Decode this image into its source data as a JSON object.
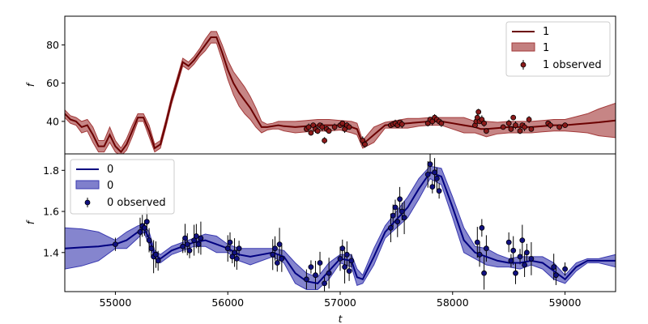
{
  "chart_data": [
    {
      "type": "line",
      "panel": "top",
      "xlabel": "",
      "ylabel": "f",
      "xlim": [
        54550,
        59450
      ],
      "ylim": [
        23,
        95
      ],
      "yticks": [
        40,
        60,
        80
      ],
      "grid": false,
      "legend_position": "top-right",
      "legend": [
        "1",
        "1",
        "1 observed"
      ],
      "colors": {
        "line": "#6b0000",
        "band": "#a33a3a",
        "marker": "#8b1a1a"
      },
      "series": [
        {
          "name": "1",
          "x": [
            54550,
            54600,
            54650,
            54700,
            54750,
            54800,
            54850,
            54900,
            54950,
            55000,
            55050,
            55100,
            55150,
            55200,
            55250,
            55300,
            55350,
            55400,
            55450,
            55500,
            55550,
            55600,
            55650,
            55700,
            55750,
            55800,
            55850,
            55900,
            55950,
            56000,
            56050,
            56100,
            56150,
            56200,
            56250,
            56300,
            56350,
            56400,
            56450,
            56500,
            56600,
            56700,
            56800,
            56900,
            57000,
            57100,
            57150,
            57200,
            57300,
            57400,
            57500,
            57600,
            57700,
            57800,
            57900,
            58000,
            58100,
            58200,
            58250,
            58300,
            58400,
            58500,
            58600,
            58700,
            58800,
            58900,
            59000,
            59100,
            59200,
            59300,
            59450
          ],
          "y": [
            44,
            41,
            40,
            37,
            38,
            33,
            27,
            27,
            33,
            27,
            24,
            28,
            35,
            42,
            42,
            35,
            26,
            28,
            39,
            51,
            61,
            71,
            69,
            72,
            76,
            80,
            84,
            84,
            76,
            67,
            60,
            55,
            51,
            47,
            42,
            37,
            37,
            37.5,
            38,
            37.5,
            37,
            37.5,
            38,
            38,
            38,
            37,
            36,
            28,
            33,
            38,
            38.5,
            39,
            39.5,
            40,
            40,
            39,
            38,
            37,
            36,
            36,
            36.5,
            37,
            37,
            37,
            37.5,
            38,
            38,
            38.5,
            39,
            39.5,
            40.5
          ],
          "band_width": [
            2,
            2,
            2,
            3,
            3,
            4,
            3,
            3,
            4,
            3,
            2,
            3,
            3,
            2,
            2,
            3,
            2,
            2,
            2,
            2,
            2,
            2,
            2,
            2,
            2,
            3,
            3,
            3,
            4,
            5,
            6,
            7,
            7,
            6,
            5,
            3,
            1.5,
            1.5,
            2,
            2.5,
            3,
            3,
            3,
            3,
            2.5,
            3,
            3,
            2,
            4,
            1.5,
            2,
            2.5,
            2,
            2,
            2,
            3,
            4,
            3,
            3,
            4,
            3,
            3,
            3,
            3,
            3,
            3,
            3,
            4,
            5,
            7,
            9
          ]
        },
        {
          "name": "1 observed",
          "x": [
            56700,
            56720,
            56740,
            56760,
            56780,
            56800,
            56820,
            56840,
            56860,
            56880,
            56900,
            56950,
            57000,
            57020,
            57040,
            57060,
            57080,
            57200,
            57220,
            57450,
            57470,
            57490,
            57510,
            57530,
            57550,
            57780,
            57800,
            57820,
            57840,
            57860,
            57880,
            57900,
            58200,
            58210,
            58220,
            58230,
            58240,
            58260,
            58280,
            58300,
            58450,
            58500,
            58520,
            58540,
            58560,
            58600,
            58620,
            58640,
            58680,
            58700,
            58850,
            58870,
            58950,
            59000
          ],
          "y": [
            36,
            37,
            34,
            38,
            36,
            35,
            38,
            37,
            30,
            36,
            35,
            37,
            38,
            39,
            36,
            38,
            37,
            30,
            28,
            38,
            38.5,
            39,
            38,
            39.5,
            38.5,
            39,
            41,
            40,
            42,
            41,
            40,
            39,
            38,
            40,
            42,
            45,
            40,
            41,
            39,
            35,
            37,
            39,
            36,
            42,
            38,
            35,
            38,
            37,
            41,
            36,
            39,
            38,
            37,
            38
          ]
        }
      ]
    },
    {
      "type": "line",
      "panel": "bottom",
      "xlabel": "t",
      "ylabel": "f",
      "xlim": [
        54550,
        59450
      ],
      "ylim": [
        1.21,
        1.88
      ],
      "yticks": [
        1.4,
        1.6,
        1.8
      ],
      "xticks": [
        55000,
        56000,
        57000,
        58000,
        59000
      ],
      "grid": false,
      "legend_position": "top-left",
      "legend": [
        "0",
        "0",
        "0 observed"
      ],
      "colors": {
        "line": "#000080",
        "band": "#3a3ab0",
        "marker": "#101080"
      },
      "series": [
        {
          "name": "0",
          "x": [
            54550,
            54700,
            54850,
            55000,
            55100,
            55200,
            55250,
            55300,
            55350,
            55400,
            55500,
            55600,
            55700,
            55800,
            55900,
            56000,
            56100,
            56200,
            56300,
            56400,
            56500,
            56600,
            56700,
            56800,
            56900,
            57000,
            57100,
            57150,
            57200,
            57300,
            57400,
            57500,
            57600,
            57700,
            57800,
            57900,
            58000,
            58100,
            58200,
            58300,
            58400,
            58500,
            58600,
            58700,
            58800,
            58900,
            59000,
            59100,
            59200,
            59300,
            59450
          ],
          "y": [
            1.42,
            1.425,
            1.43,
            1.44,
            1.46,
            1.5,
            1.52,
            1.47,
            1.39,
            1.37,
            1.41,
            1.43,
            1.45,
            1.46,
            1.44,
            1.42,
            1.39,
            1.38,
            1.39,
            1.4,
            1.38,
            1.3,
            1.26,
            1.25,
            1.31,
            1.37,
            1.36,
            1.28,
            1.27,
            1.38,
            1.5,
            1.56,
            1.62,
            1.71,
            1.79,
            1.77,
            1.62,
            1.46,
            1.4,
            1.38,
            1.36,
            1.35,
            1.35,
            1.36,
            1.35,
            1.31,
            1.27,
            1.33,
            1.36,
            1.36,
            1.36
          ],
          "band_width": [
            0.1,
            0.09,
            0.07,
            0.02,
            0.04,
            0.03,
            0.02,
            0.03,
            0.02,
            0.02,
            0.02,
            0.02,
            0.02,
            0.03,
            0.04,
            0.02,
            0.03,
            0.04,
            0.03,
            0.02,
            0.03,
            0.05,
            0.04,
            0.03,
            0.04,
            0.02,
            0.03,
            0.04,
            0.02,
            0.04,
            0.03,
            0.04,
            0.05,
            0.05,
            0.03,
            0.04,
            0.05,
            0.06,
            0.03,
            0.04,
            0.03,
            0.02,
            0.03,
            0.02,
            0.03,
            0.04,
            0.02,
            0.02,
            0.01,
            0.01,
            0.03
          ]
        },
        {
          "name": "0 observed",
          "x": [
            55000,
            55220,
            55240,
            55260,
            55280,
            55300,
            55320,
            55340,
            55360,
            55380,
            55600,
            55620,
            55640,
            55660,
            55700,
            55720,
            55740,
            55760,
            56000,
            56020,
            56040,
            56060,
            56080,
            56100,
            56400,
            56420,
            56440,
            56460,
            56480,
            56700,
            56740,
            56780,
            56820,
            56860,
            56900,
            57000,
            57020,
            57040,
            57060,
            57080,
            57100,
            57450,
            57470,
            57490,
            57510,
            57530,
            57550,
            57570,
            57780,
            57800,
            57820,
            57840,
            57860,
            57880,
            58220,
            58240,
            58260,
            58280,
            58300,
            58500,
            58520,
            58540,
            58560,
            58600,
            58620,
            58640,
            58660,
            58700,
            58900,
            58920,
            59000
          ],
          "y": [
            1.44,
            1.5,
            1.53,
            1.52,
            1.55,
            1.46,
            1.42,
            1.38,
            1.39,
            1.36,
            1.43,
            1.47,
            1.44,
            1.41,
            1.46,
            1.48,
            1.44,
            1.47,
            1.42,
            1.45,
            1.38,
            1.4,
            1.37,
            1.42,
            1.39,
            1.42,
            1.35,
            1.44,
            1.37,
            1.27,
            1.33,
            1.29,
            1.35,
            1.25,
            1.3,
            1.37,
            1.42,
            1.33,
            1.39,
            1.31,
            1.36,
            1.52,
            1.58,
            1.62,
            1.55,
            1.66,
            1.6,
            1.57,
            1.78,
            1.83,
            1.72,
            1.79,
            1.76,
            1.7,
            1.45,
            1.39,
            1.52,
            1.3,
            1.42,
            1.45,
            1.36,
            1.41,
            1.3,
            1.38,
            1.46,
            1.34,
            1.4,
            1.37,
            1.33,
            1.29,
            1.32
          ]
        }
      ]
    }
  ]
}
